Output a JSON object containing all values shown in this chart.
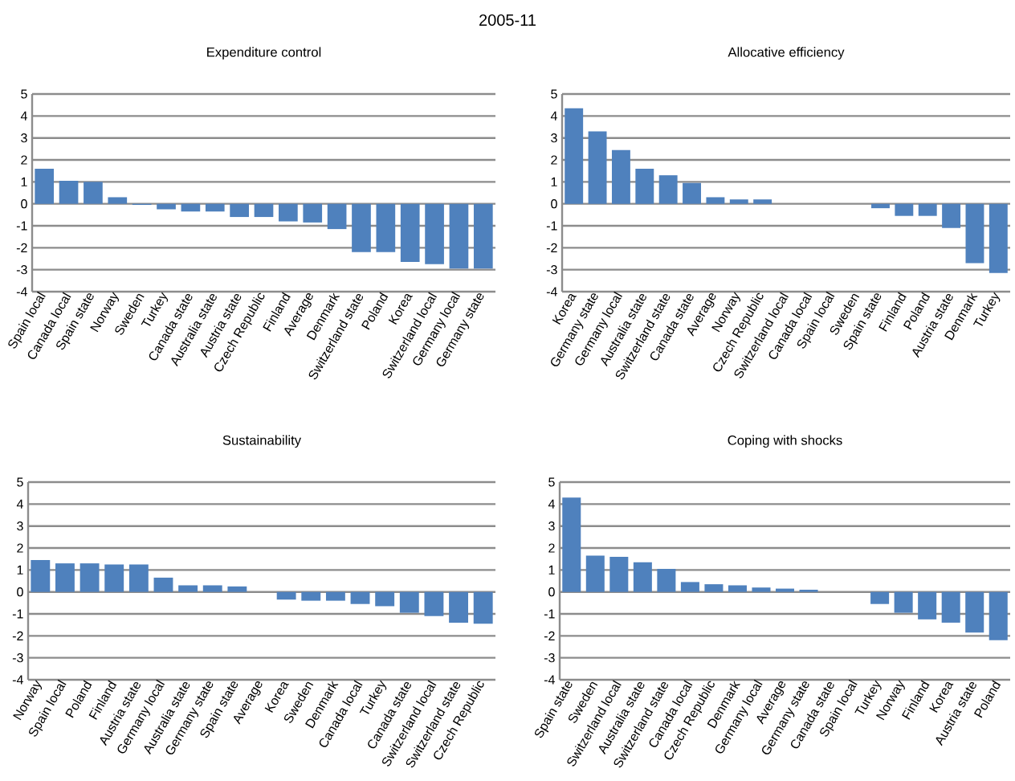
{
  "chart_data": [
    {
      "type": "bar",
      "title": "Expenditure control",
      "annotations": [
        "2005-11"
      ],
      "color": "#4f81bd",
      "ylim": [
        -4,
        5
      ],
      "yticks": [
        -4,
        -3,
        -2,
        -1,
        0,
        1,
        2,
        3,
        4,
        5
      ],
      "grid": "y",
      "categories": [
        "Spain local",
        "Canada local",
        "Spain state",
        "Norway",
        "Sweden",
        "Turkey",
        "Canada state",
        "Australia state",
        "Austria state",
        "Czech Republic",
        "Finland",
        "Average",
        "Denmark",
        "Switzerland state",
        "Poland",
        "Korea",
        "Switzerland local",
        "Germany local",
        "Germany state"
      ],
      "values": [
        1.6,
        1.05,
        1.0,
        0.3,
        -0.05,
        -0.25,
        -0.35,
        -0.35,
        -0.6,
        -0.6,
        -0.8,
        -0.85,
        -1.15,
        -2.2,
        -2.2,
        -2.65,
        -2.75,
        -2.95,
        -2.95
      ]
    },
    {
      "type": "bar",
      "title": "Allocative efficiency",
      "color": "#4f81bd",
      "ylim": [
        -4,
        5
      ],
      "yticks": [
        -4,
        -3,
        -2,
        -1,
        0,
        1,
        2,
        3,
        4,
        5
      ],
      "grid": "y",
      "categories": [
        "Korea",
        "Germany state",
        "Germany local",
        "Australia state",
        "Switzerland state",
        "Canada state",
        "Average",
        "Norway",
        "Czech Republic",
        "Switzerland local",
        "Canada local",
        "Spain local",
        "Sweden",
        "Spain state",
        "Finland",
        "Poland",
        "Austria state",
        "Denmark",
        "Turkey"
      ],
      "values": [
        4.35,
        3.3,
        2.45,
        1.6,
        1.3,
        0.95,
        0.3,
        0.2,
        0.2,
        0,
        0,
        0,
        0,
        -0.2,
        -0.55,
        -0.55,
        -1.1,
        -2.7,
        -3.15
      ]
    },
    {
      "type": "bar",
      "title": "Sustainability",
      "color": "#4f81bd",
      "ylim": [
        -4,
        5
      ],
      "yticks": [
        -4,
        -3,
        -2,
        -1,
        0,
        1,
        2,
        3,
        4,
        5
      ],
      "grid": "y",
      "categories": [
        "Norway",
        "Spain local",
        "Poland",
        "Finland",
        "Austria state",
        "Germany local",
        "Australia state",
        "Germany state",
        "Spain state",
        "Average",
        "Korea",
        "Sweden",
        "Denmark",
        "Canada local",
        "Turkey",
        "Canada state",
        "Switzerland local",
        "Switzerland state",
        "Czech Republic"
      ],
      "values": [
        1.45,
        1.3,
        1.3,
        1.25,
        1.25,
        0.65,
        0.3,
        0.3,
        0.25,
        0,
        -0.35,
        -0.4,
        -0.4,
        -0.55,
        -0.65,
        -0.95,
        -1.1,
        -1.4,
        -1.45
      ]
    },
    {
      "type": "bar",
      "title": "Coping with shocks",
      "color": "#4f81bd",
      "ylim": [
        -4,
        5
      ],
      "yticks": [
        -4,
        -3,
        -2,
        -1,
        0,
        1,
        2,
        3,
        4,
        5
      ],
      "grid": "y",
      "categories": [
        "Spain state",
        "Sweden",
        "Switzerland local",
        "Australia state",
        "Switzerland state",
        "Canada local",
        "Czech Republic",
        "Denmark",
        "Germany local",
        "Average",
        "Germany state",
        "Canada state",
        "Spain local",
        "Turkey",
        "Norway",
        "Finland",
        "Korea",
        "Austria state",
        "Poland"
      ],
      "values": [
        4.3,
        1.65,
        1.6,
        1.35,
        1.05,
        0.45,
        0.35,
        0.3,
        0.2,
        0.15,
        0.1,
        0,
        0,
        -0.55,
        -0.95,
        -1.25,
        -1.4,
        -1.85,
        -2.2
      ]
    }
  ]
}
